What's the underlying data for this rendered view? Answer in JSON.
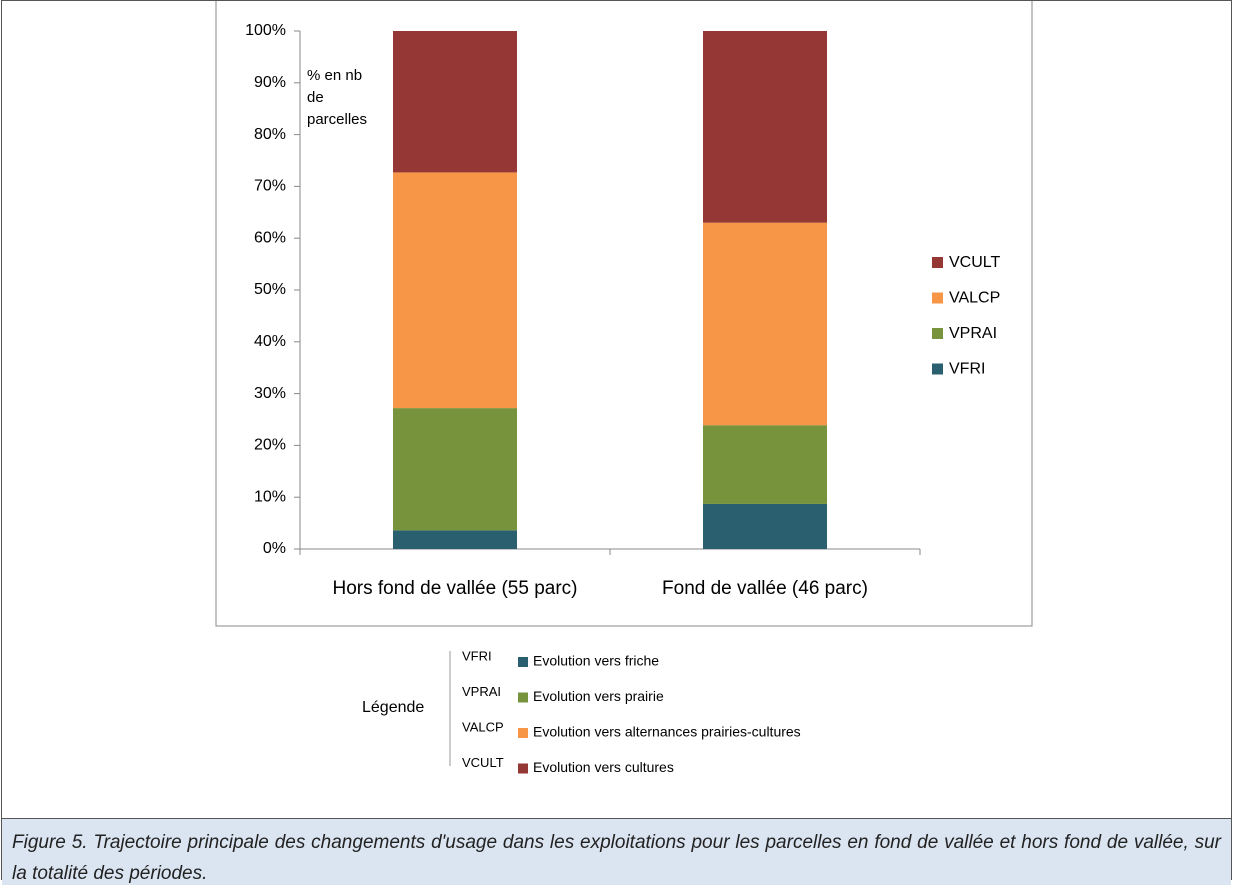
{
  "chart_data": {
    "type": "stacked-bar",
    "categories": [
      "Hors fond de vallée (55 parc)",
      "Fond de vallée (46 parc)"
    ],
    "series": [
      {
        "name": "VFRI",
        "color": "#2a5f6f",
        "values": [
          3.6,
          8.7
        ]
      },
      {
        "name": "VPRAI",
        "color": "#77933c",
        "values": [
          23.6,
          15.2
        ]
      },
      {
        "name": "VALCP",
        "color": "#f79646",
        "values": [
          45.5,
          39.1
        ]
      },
      {
        "name": "VCULT",
        "color": "#953735",
        "values": [
          27.3,
          37.0
        ]
      }
    ],
    "ylim": [
      0,
      100
    ],
    "yticks": [
      {
        "value": 0,
        "label": "0%"
      },
      {
        "value": 10,
        "label": "10%"
      },
      {
        "value": 20,
        "label": "20%"
      },
      {
        "value": 30,
        "label": "30%"
      },
      {
        "value": 40,
        "label": "40%"
      },
      {
        "value": 50,
        "label": "50%"
      },
      {
        "value": 60,
        "label": "60%"
      },
      {
        "value": 70,
        "label": "70%"
      },
      {
        "value": 80,
        "label": "80%"
      },
      {
        "value": 90,
        "label": "90%"
      },
      {
        "value": 100,
        "label": "100%"
      }
    ],
    "annotation": [
      "% en nb",
      "de",
      "parcelles"
    ],
    "legend": "right"
  },
  "key": {
    "title": "Légende",
    "rows": [
      {
        "code": "VFRI",
        "label": "Evolution vers friche"
      },
      {
        "code": "VPRAI",
        "label": "Evolution vers prairie"
      },
      {
        "code": "VALCP",
        "label": "Evolution vers alternances prairies-cultures"
      },
      {
        "code": "VCULT",
        "label": "Evolution vers cultures"
      }
    ]
  },
  "caption": "Figure 5. Trajectoire principale des changements d'usage dans les exploitations pour les parcelles en fond de vallée et hors fond de vallée, sur la totalité des périodes."
}
